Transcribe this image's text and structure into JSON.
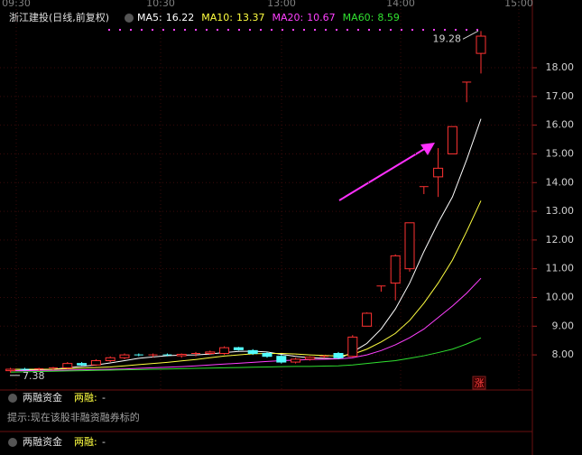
{
  "header": {
    "title": "浙江建投(日线,前复权)"
  },
  "time_labels": [
    "09:30",
    "10:30",
    "13:00",
    "14:00",
    "15:00"
  ],
  "chart_data": {
    "type": "candlestick",
    "ylim": [
      6.84,
      19.73
    ],
    "yticks": [
      {
        "value": 8,
        "label": "8.00"
      },
      {
        "value": 9,
        "label": "9.00"
      },
      {
        "value": 10,
        "label": "10.00"
      },
      {
        "value": 11,
        "label": "11.00"
      },
      {
        "value": 12,
        "label": "12.00"
      },
      {
        "value": 13,
        "label": "13.00"
      },
      {
        "value": 14,
        "label": "14.00"
      },
      {
        "value": 15,
        "label": "15.00"
      },
      {
        "value": 16,
        "label": "16.00"
      },
      {
        "value": 17,
        "label": "17.00"
      },
      {
        "value": 18,
        "label": "18.00"
      }
    ],
    "grid": true,
    "up_color": "#ff3232",
    "down_color": "#54ffff",
    "candles": {
      "open": [
        7.45,
        7.5,
        7.48,
        7.52,
        7.55,
        7.7,
        7.65,
        7.8,
        7.9,
        8.0,
        7.98,
        8.0,
        7.97,
        8.02,
        8.05,
        8.05,
        8.25,
        8.15,
        8.05,
        7.95,
        7.75,
        7.85,
        7.92,
        8.05,
        7.95,
        9.0,
        10.4,
        10.5,
        11.0,
        13.86,
        14.2,
        15.0,
        17.5,
        18.5
      ],
      "high": [
        7.55,
        7.55,
        7.55,
        7.58,
        7.75,
        7.75,
        7.85,
        7.95,
        8.05,
        8.05,
        8.05,
        8.05,
        8.05,
        8.1,
        8.15,
        8.3,
        8.28,
        8.2,
        8.1,
        8.0,
        7.9,
        7.95,
        8.0,
        8.1,
        8.69,
        9.48,
        10.4,
        11.5,
        12.6,
        13.86,
        15.2,
        15.95,
        17.5,
        19.28
      ],
      "low": [
        7.38,
        7.45,
        7.44,
        7.48,
        7.52,
        7.62,
        7.62,
        7.75,
        7.85,
        7.95,
        7.92,
        7.95,
        7.9,
        7.95,
        8.0,
        8.0,
        8.15,
        8.0,
        7.9,
        7.7,
        7.7,
        7.8,
        7.88,
        7.85,
        7.92,
        9.0,
        10.2,
        9.9,
        10.9,
        13.6,
        13.5,
        15.0,
        16.8,
        17.8
      ],
      "close": [
        7.5,
        7.48,
        7.52,
        7.55,
        7.7,
        7.65,
        7.8,
        7.9,
        8.0,
        7.98,
        8.0,
        7.97,
        8.02,
        8.05,
        8.1,
        8.25,
        8.18,
        8.05,
        7.95,
        7.75,
        7.85,
        7.92,
        7.95,
        7.9,
        8.62,
        9.45,
        10.4,
        11.45,
        12.6,
        13.86,
        14.5,
        15.95,
        17.5,
        19.1
      ]
    },
    "series": [
      {
        "name": "MA5:",
        "color": "#ffffff",
        "values": [
          7.45,
          7.47,
          7.48,
          7.5,
          7.55,
          7.6,
          7.65,
          7.72,
          7.8,
          7.88,
          7.93,
          7.97,
          7.99,
          8.0,
          8.03,
          8.08,
          8.12,
          8.13,
          8.1,
          8.02,
          7.95,
          7.9,
          7.88,
          7.86,
          8.1,
          8.4,
          8.9,
          9.6,
          10.5,
          11.6,
          12.6,
          13.5,
          14.8,
          16.22
        ]
      },
      {
        "name": "MA10:",
        "color": "#ffff40",
        "values": [
          7.5,
          7.5,
          7.5,
          7.5,
          7.52,
          7.54,
          7.56,
          7.58,
          7.62,
          7.66,
          7.7,
          7.74,
          7.79,
          7.84,
          7.9,
          7.96,
          8.0,
          8.04,
          8.05,
          8.05,
          8.03,
          8.0,
          7.98,
          7.96,
          8.02,
          8.2,
          8.45,
          8.75,
          9.2,
          9.8,
          10.5,
          11.3,
          12.3,
          13.37
        ]
      },
      {
        "name": "MA20:",
        "color": "#ff40ff",
        "values": [
          7.45,
          7.45,
          7.46,
          7.46,
          7.47,
          7.48,
          7.49,
          7.5,
          7.51,
          7.53,
          7.55,
          7.57,
          7.59,
          7.62,
          7.65,
          7.68,
          7.71,
          7.74,
          7.77,
          7.8,
          7.82,
          7.84,
          7.85,
          7.86,
          7.9,
          8.0,
          8.15,
          8.35,
          8.6,
          8.9,
          9.3,
          9.7,
          10.15,
          10.67
        ]
      },
      {
        "name": "MA60:",
        "color": "#30e030",
        "values": [
          7.4,
          7.41,
          7.42,
          7.43,
          7.44,
          7.45,
          7.46,
          7.47,
          7.48,
          7.49,
          7.5,
          7.51,
          7.52,
          7.53,
          7.54,
          7.55,
          7.56,
          7.57,
          7.58,
          7.59,
          7.6,
          7.6,
          7.61,
          7.62,
          7.65,
          7.7,
          7.75,
          7.8,
          7.88,
          7.97,
          8.08,
          8.2,
          8.38,
          8.59
        ]
      }
    ]
  },
  "badge": "涨",
  "panels": [
    {
      "title": "两融资金",
      "label": "两融:",
      "value": "-"
    },
    {
      "title": "两融资金",
      "label": "两融:",
      "value": "-"
    }
  ],
  "hint": "提示:现在该股非融资融券标的"
}
